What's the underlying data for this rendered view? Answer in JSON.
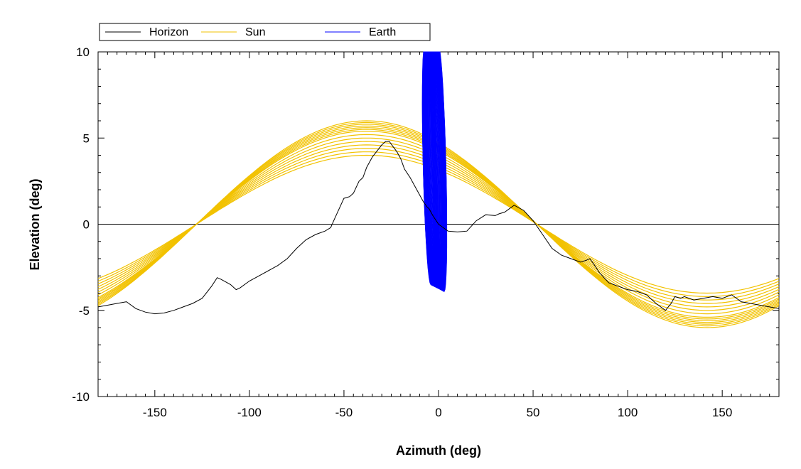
{
  "legend": {
    "entries": [
      {
        "label": "Horizon",
        "color": "#000000"
      },
      {
        "label": "Sun",
        "color": "#F2C200"
      },
      {
        "label": "Earth",
        "color": "#0000FF"
      }
    ]
  },
  "chart_data": {
    "type": "line",
    "xlabel": "Azimuth (deg)",
    "ylabel": "Elevation (deg)",
    "xlim": [
      -180,
      180
    ],
    "ylim": [
      -10,
      10
    ],
    "xticks": [
      -150,
      -100,
      -50,
      0,
      50,
      100,
      150
    ],
    "yticks": [
      -10,
      -5,
      0,
      5,
      10
    ],
    "grid": false,
    "legend_position": "top-left",
    "zero_line": true,
    "series": [
      {
        "name": "Horizon",
        "color": "#000000",
        "x": [
          -180,
          -175,
          -170,
          -165,
          -160,
          -155,
          -150,
          -145,
          -140,
          -135,
          -130,
          -125,
          -120,
          -117,
          -115,
          -110,
          -107,
          -105,
          -100,
          -95,
          -90,
          -85,
          -80,
          -75,
          -70,
          -65,
          -60,
          -57,
          -55,
          -50,
          -47,
          -45,
          -42,
          -40,
          -38,
          -35,
          -30,
          -28,
          -26,
          -24,
          -22,
          -20,
          -18,
          -15,
          -12,
          -10,
          -8,
          -6,
          -5,
          -3,
          0,
          5,
          10,
          15,
          20,
          25,
          30,
          32,
          35,
          40,
          45,
          50,
          55,
          60,
          65,
          70,
          75,
          78,
          80,
          82,
          85,
          90,
          95,
          100,
          105,
          110,
          115,
          120,
          123,
          125,
          128,
          130,
          135,
          140,
          145,
          150,
          155,
          160,
          165,
          170,
          175,
          180
        ],
        "y": [
          -4.8,
          -4.7,
          -4.6,
          -4.5,
          -4.9,
          -5.1,
          -5.2,
          -5.15,
          -5.0,
          -4.8,
          -4.6,
          -4.3,
          -3.6,
          -3.1,
          -3.2,
          -3.5,
          -3.8,
          -3.7,
          -3.3,
          -3.0,
          -2.7,
          -2.4,
          -2.0,
          -1.4,
          -0.9,
          -0.6,
          -0.4,
          -0.2,
          0.3,
          1.5,
          1.6,
          1.8,
          2.5,
          2.7,
          3.3,
          3.9,
          4.6,
          4.8,
          4.8,
          4.5,
          4.2,
          3.8,
          3.2,
          2.7,
          2.1,
          1.7,
          1.3,
          1.0,
          0.9,
          0.5,
          0.0,
          -0.4,
          -0.45,
          -0.4,
          0.2,
          0.55,
          0.5,
          0.6,
          0.7,
          1.1,
          0.8,
          0.2,
          -0.6,
          -1.4,
          -1.8,
          -2.0,
          -2.2,
          -2.1,
          -2.0,
          -2.3,
          -2.8,
          -3.4,
          -3.6,
          -3.8,
          -3.9,
          -4.1,
          -4.6,
          -5.0,
          -4.6,
          -4.2,
          -4.3,
          -4.2,
          -4.4,
          -4.3,
          -4.2,
          -4.3,
          -4.1,
          -4.5,
          -4.6,
          -4.7,
          -4.8,
          -4.9
        ]
      },
      {
        "name": "Sun",
        "color": "#F2C200",
        "model": "sinusoid",
        "amplitude": [
          4.0,
          4.2,
          4.4,
          4.6,
          4.8,
          5.0,
          5.2,
          5.4,
          5.5,
          5.6,
          5.7,
          5.8,
          5.9,
          6.0
        ],
        "center_azimuth": -38,
        "offset": 0
      },
      {
        "name": "Earth",
        "color": "#0000FF",
        "model": "loops",
        "loop_count": 40,
        "azimuth_range": [
          -8,
          7
        ],
        "elevation_range": [
          -3.9,
          10
        ]
      }
    ]
  }
}
